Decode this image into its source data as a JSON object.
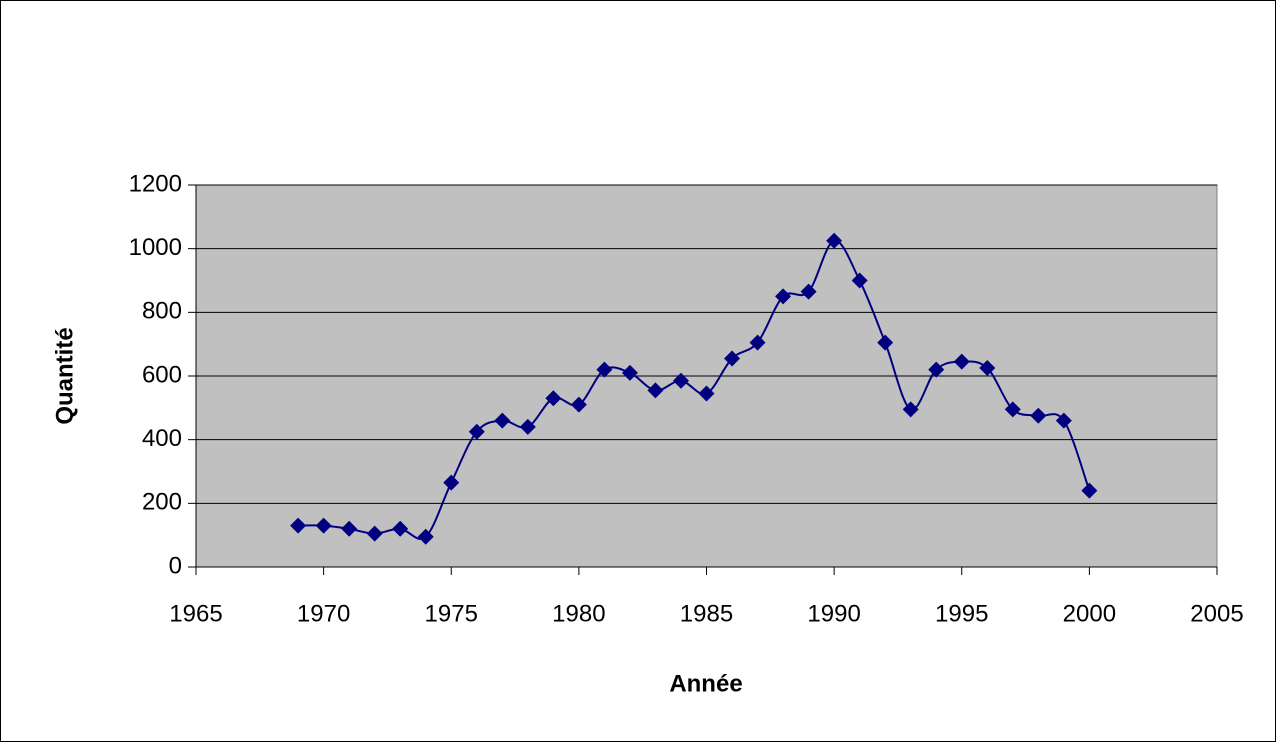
{
  "chart_data": {
    "type": "line",
    "smooth": true,
    "x_label": "Année",
    "y_label": "Quantité",
    "x": [
      1969,
      1970,
      1971,
      1972,
      1973,
      1974,
      1975,
      1976,
      1977,
      1978,
      1979,
      1980,
      1981,
      1982,
      1983,
      1984,
      1985,
      1986,
      1987,
      1988,
      1989,
      1990,
      1991,
      1992,
      1993,
      1994,
      1995,
      1996,
      1997,
      1998,
      1999,
      2000
    ],
    "series": [
      {
        "name": "Quantité",
        "color": "#000080",
        "values": [
          130,
          130,
          120,
          105,
          120,
          95,
          265,
          425,
          460,
          440,
          530,
          510,
          620,
          610,
          555,
          585,
          545,
          655,
          705,
          850,
          865,
          1025,
          900,
          705,
          495,
          620,
          645,
          625,
          495,
          475,
          460,
          240
        ]
      }
    ],
    "xlim": [
      1965,
      2005
    ],
    "xticks": [
      1965,
      1970,
      1975,
      1980,
      1985,
      1990,
      1995,
      2000,
      2005
    ],
    "ylim": [
      0,
      1200
    ],
    "yticks": [
      0,
      200,
      400,
      600,
      800,
      1000,
      1200
    ],
    "grid": true,
    "plot_background": "#c0c0c0"
  }
}
